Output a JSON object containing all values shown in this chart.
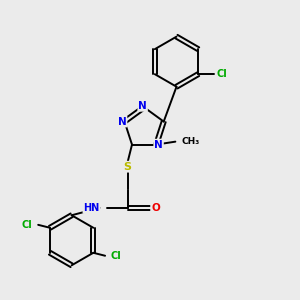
{
  "background_color": "#ebebeb",
  "bond_color": "#000000",
  "atom_colors": {
    "N": "#0000ee",
    "O": "#ee0000",
    "S": "#bbbb00",
    "Cl": "#00aa00",
    "C": "#000000",
    "H": "#555555"
  }
}
